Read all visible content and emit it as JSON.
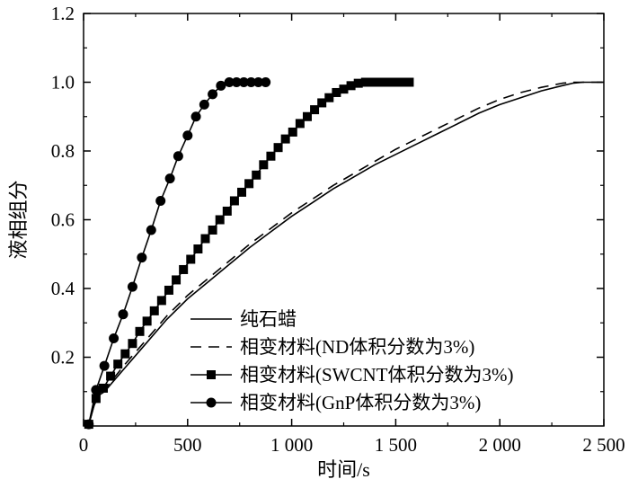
{
  "chart_data": {
    "type": "line",
    "title": "",
    "xlabel": "时间/s",
    "ylabel": "液相组分",
    "xlim": [
      0,
      2500
    ],
    "ylim": [
      0,
      1.2
    ],
    "x_ticks": [
      0,
      500,
      1000,
      1500,
      2000,
      2500
    ],
    "x_tick_labels": [
      "0",
      "500",
      "1 000",
      "1 500",
      "2 000",
      "2 500"
    ],
    "y_ticks": [
      0.2,
      0.4,
      0.6,
      0.8,
      1.0,
      1.2
    ],
    "y_tick_labels": [
      "0.2",
      "0.4",
      "0.6",
      "0.8",
      "1.0",
      "1.2"
    ],
    "grid": false,
    "legend_position": "bottom-center",
    "series": [
      {
        "name": "纯石蜡",
        "style": "solid",
        "marker": "none",
        "color": "#000000",
        "x": [
          25,
          50,
          75,
          100,
          200,
          300,
          400,
          500,
          600,
          700,
          800,
          900,
          1000,
          1100,
          1200,
          1300,
          1400,
          1500,
          1600,
          1700,
          1800,
          1900,
          2000,
          2100,
          2200,
          2300,
          2350,
          2400,
          2450,
          2500
        ],
        "y": [
          0.005,
          0.06,
          0.09,
          0.1,
          0.17,
          0.24,
          0.31,
          0.37,
          0.42,
          0.47,
          0.52,
          0.565,
          0.61,
          0.65,
          0.69,
          0.725,
          0.76,
          0.79,
          0.82,
          0.85,
          0.88,
          0.91,
          0.935,
          0.955,
          0.975,
          0.99,
          0.997,
          1.0,
          1.0,
          1.0
        ]
      },
      {
        "name": "相变材料(ND体积分数为3%)",
        "style": "dashed",
        "marker": "none",
        "color": "#000000",
        "x": [
          25,
          50,
          75,
          100,
          200,
          300,
          400,
          500,
          600,
          700,
          800,
          900,
          1000,
          1100,
          1200,
          1300,
          1400,
          1500,
          1600,
          1700,
          1800,
          1900,
          2000,
          2100,
          2200,
          2300,
          2350,
          2400,
          2450,
          2500
        ],
        "y": [
          0.005,
          0.06,
          0.095,
          0.105,
          0.18,
          0.25,
          0.32,
          0.38,
          0.43,
          0.48,
          0.53,
          0.575,
          0.62,
          0.66,
          0.7,
          0.735,
          0.77,
          0.805,
          0.835,
          0.865,
          0.895,
          0.925,
          0.95,
          0.97,
          0.985,
          0.997,
          1.0,
          1.0,
          1.0,
          1.0
        ]
      },
      {
        "name": "相变材料(SWCNT体积分数为3%)",
        "style": "solid",
        "marker": "square",
        "color": "#000000",
        "x": [
          25,
          60,
          95,
          130,
          165,
          200,
          235,
          270,
          305,
          340,
          375,
          410,
          445,
          480,
          515,
          550,
          585,
          620,
          655,
          690,
          725,
          760,
          795,
          830,
          865,
          900,
          935,
          970,
          1005,
          1040,
          1075,
          1110,
          1145,
          1180,
          1215,
          1250,
          1285,
          1320,
          1355,
          1390,
          1425,
          1460,
          1495,
          1530,
          1565
        ],
        "y": [
          0.005,
          0.08,
          0.11,
          0.145,
          0.18,
          0.21,
          0.24,
          0.275,
          0.305,
          0.335,
          0.365,
          0.395,
          0.425,
          0.455,
          0.485,
          0.515,
          0.545,
          0.57,
          0.6,
          0.625,
          0.655,
          0.68,
          0.705,
          0.73,
          0.76,
          0.785,
          0.81,
          0.835,
          0.855,
          0.88,
          0.9,
          0.92,
          0.94,
          0.955,
          0.97,
          0.98,
          0.99,
          0.997,
          1.0,
          1.0,
          1.0,
          1.0,
          1.0,
          1.0,
          1.0
        ]
      },
      {
        "name": "相变材料(GnP体积分数为3%)",
        "style": "solid",
        "marker": "circle",
        "color": "#000000",
        "x": [
          25,
          60,
          100,
          145,
          190,
          235,
          280,
          325,
          370,
          415,
          455,
          500,
          540,
          580,
          620,
          660,
          700,
          735,
          770,
          805,
          840,
          875
        ],
        "y": [
          0.005,
          0.105,
          0.175,
          0.255,
          0.325,
          0.405,
          0.49,
          0.57,
          0.655,
          0.72,
          0.785,
          0.845,
          0.9,
          0.935,
          0.965,
          0.99,
          1.0,
          1.0,
          1.0,
          1.0,
          1.0,
          1.0
        ]
      }
    ]
  }
}
